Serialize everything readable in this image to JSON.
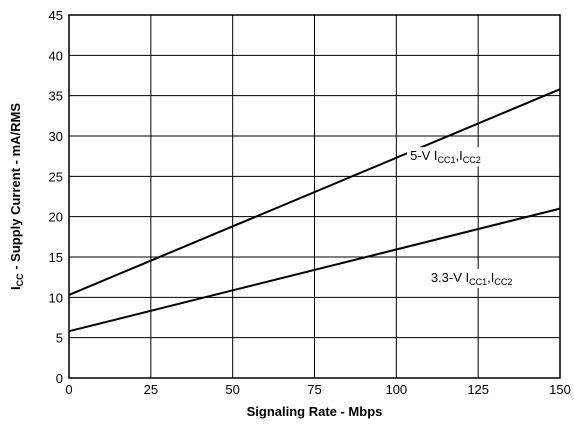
{
  "chart_data": {
    "type": "line",
    "xlabel": "Signaling Rate - Mbps",
    "ylabel_main": "I",
    "ylabel_sub": "CC",
    "ylabel_rest": " - Supply Current - mA/RMS",
    "xlim": [
      0,
      150
    ],
    "ylim": [
      0,
      45
    ],
    "xticks": [
      "0",
      "25",
      "50",
      "75",
      "100",
      "125",
      "150"
    ],
    "yticks": [
      "0",
      "5",
      "10",
      "15",
      "20",
      "25",
      "30",
      "35",
      "40",
      "45"
    ],
    "grid": true,
    "series": [
      {
        "label_prefix": "5-V I",
        "label_sub1": "CC1",
        "label_mid": ",I",
        "label_sub2": "CC2",
        "x": [
          0,
          150
        ],
        "y": [
          10.3,
          35.8
        ]
      },
      {
        "label_prefix": "3.3-V I",
        "label_sub1": "CC1",
        "label_mid": ",I",
        "label_sub2": "CC2",
        "x": [
          0,
          150
        ],
        "y": [
          5.8,
          21
        ]
      }
    ]
  }
}
